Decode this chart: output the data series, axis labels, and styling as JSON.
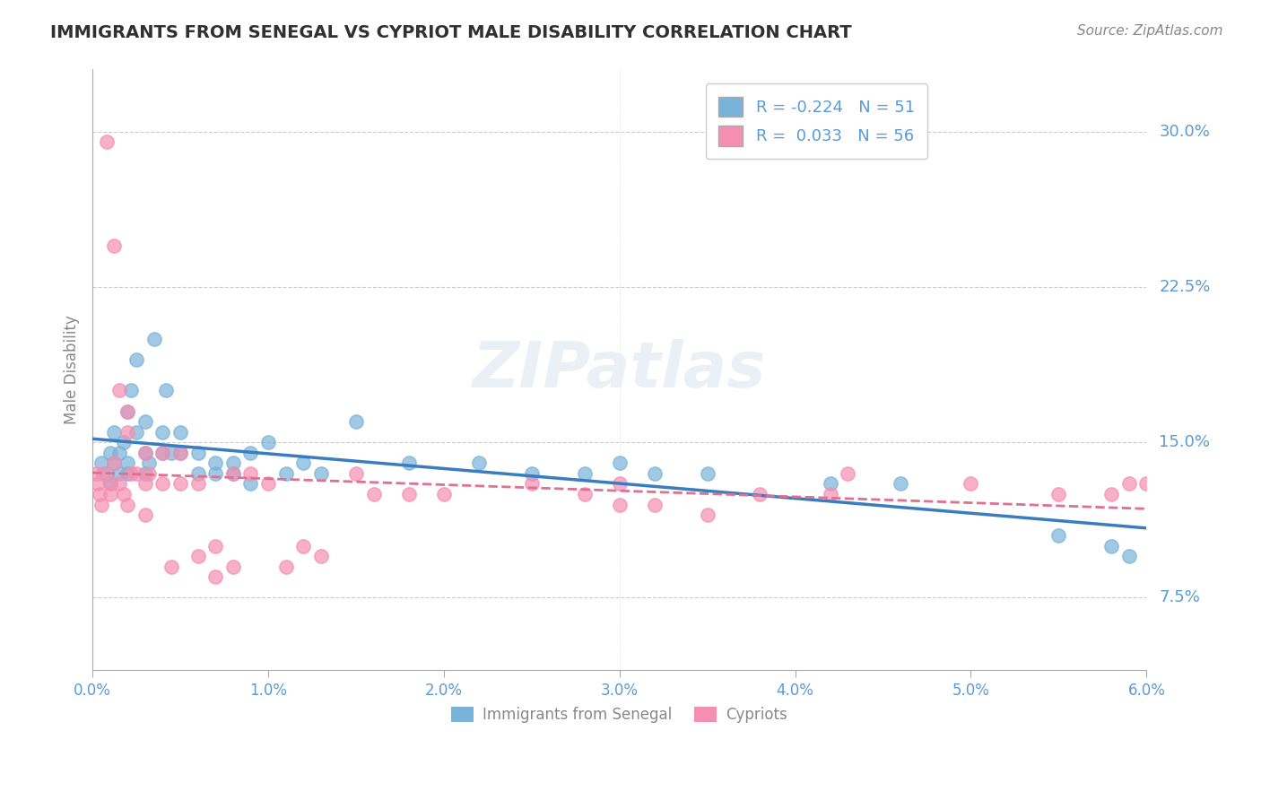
{
  "title": "IMMIGRANTS FROM SENEGAL VS CYPRIOT MALE DISABILITY CORRELATION CHART",
  "source": "Source: ZipAtlas.com",
  "ylabel": "Male Disability",
  "legend_entries": [
    {
      "label": "Immigrants from Senegal",
      "R": -0.224,
      "N": 51,
      "color": "#a8c8e8"
    },
    {
      "label": "Cypriots",
      "R": 0.033,
      "N": 56,
      "color": "#f4a8c0"
    }
  ],
  "blue_color": "#7ab3d9",
  "pink_color": "#f48fb1",
  "blue_line_color": "#3a7dbf",
  "pink_line_color": "#e07090",
  "bg_color": "#ffffff",
  "grid_color": "#cccccc",
  "axis_label_color": "#5b9bd5",
  "title_color": "#303030",
  "xlim": [
    0.0,
    0.06
  ],
  "ylim": [
    0.04,
    0.33
  ],
  "yticks": [
    0.075,
    0.15,
    0.225,
    0.3
  ],
  "ytick_labels": [
    "7.5%",
    "15.0%",
    "22.5%",
    "30.0%"
  ],
  "blue_scatter_x": [
    0.0005,
    0.0008,
    0.001,
    0.001,
    0.0012,
    0.0012,
    0.0015,
    0.0015,
    0.0018,
    0.002,
    0.002,
    0.002,
    0.0022,
    0.0025,
    0.0025,
    0.003,
    0.003,
    0.003,
    0.0032,
    0.0035,
    0.004,
    0.004,
    0.0042,
    0.0045,
    0.005,
    0.005,
    0.006,
    0.006,
    0.007,
    0.007,
    0.008,
    0.008,
    0.009,
    0.009,
    0.01,
    0.011,
    0.012,
    0.013,
    0.015,
    0.018,
    0.022,
    0.025,
    0.028,
    0.03,
    0.032,
    0.035,
    0.042,
    0.046,
    0.055,
    0.058,
    0.059
  ],
  "blue_scatter_y": [
    0.14,
    0.135,
    0.145,
    0.13,
    0.14,
    0.155,
    0.145,
    0.135,
    0.15,
    0.14,
    0.135,
    0.165,
    0.175,
    0.19,
    0.155,
    0.145,
    0.135,
    0.16,
    0.14,
    0.2,
    0.155,
    0.145,
    0.175,
    0.145,
    0.145,
    0.155,
    0.145,
    0.135,
    0.14,
    0.135,
    0.14,
    0.135,
    0.13,
    0.145,
    0.15,
    0.135,
    0.14,
    0.135,
    0.16,
    0.14,
    0.14,
    0.135,
    0.135,
    0.14,
    0.135,
    0.135,
    0.13,
    0.13,
    0.105,
    0.1,
    0.095
  ],
  "pink_scatter_x": [
    0.0002,
    0.0003,
    0.0004,
    0.0005,
    0.0006,
    0.0008,
    0.001,
    0.001,
    0.0012,
    0.0012,
    0.0015,
    0.0015,
    0.0018,
    0.002,
    0.002,
    0.002,
    0.0022,
    0.0025,
    0.003,
    0.003,
    0.003,
    0.0032,
    0.004,
    0.004,
    0.0045,
    0.005,
    0.005,
    0.006,
    0.006,
    0.007,
    0.007,
    0.008,
    0.008,
    0.009,
    0.01,
    0.011,
    0.012,
    0.013,
    0.015,
    0.016,
    0.018,
    0.02,
    0.025,
    0.028,
    0.03,
    0.03,
    0.032,
    0.035,
    0.038,
    0.042,
    0.043,
    0.05,
    0.055,
    0.058,
    0.059,
    0.06
  ],
  "pink_scatter_y": [
    0.135,
    0.13,
    0.125,
    0.12,
    0.135,
    0.295,
    0.13,
    0.125,
    0.245,
    0.14,
    0.175,
    0.13,
    0.125,
    0.165,
    0.155,
    0.12,
    0.135,
    0.135,
    0.145,
    0.13,
    0.115,
    0.135,
    0.145,
    0.13,
    0.09,
    0.145,
    0.13,
    0.095,
    0.13,
    0.085,
    0.1,
    0.135,
    0.09,
    0.135,
    0.13,
    0.09,
    0.1,
    0.095,
    0.135,
    0.125,
    0.125,
    0.125,
    0.13,
    0.125,
    0.12,
    0.13,
    0.12,
    0.115,
    0.125,
    0.125,
    0.135,
    0.13,
    0.125,
    0.125,
    0.13,
    0.13
  ]
}
